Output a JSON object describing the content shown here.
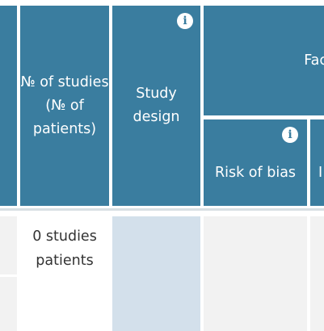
{
  "header": {
    "num_studies_label": "№ of studies (№ of patients)",
    "study_design_label": "Study design",
    "factors_label": "Fac",
    "risk_of_bias_label": "Risk of bias",
    "next_col_partial": "I"
  },
  "icons": {
    "study_design_info": "info-icon",
    "risk_of_bias_info": "info-icon"
  },
  "info_glyph": "i",
  "row": {
    "num_studies_value": "0 studies patients"
  },
  "colors": {
    "header_bg": "#3a7d9f",
    "body_bg": "#f2f2f2",
    "design_cell_bg": "#d3e0eb"
  }
}
